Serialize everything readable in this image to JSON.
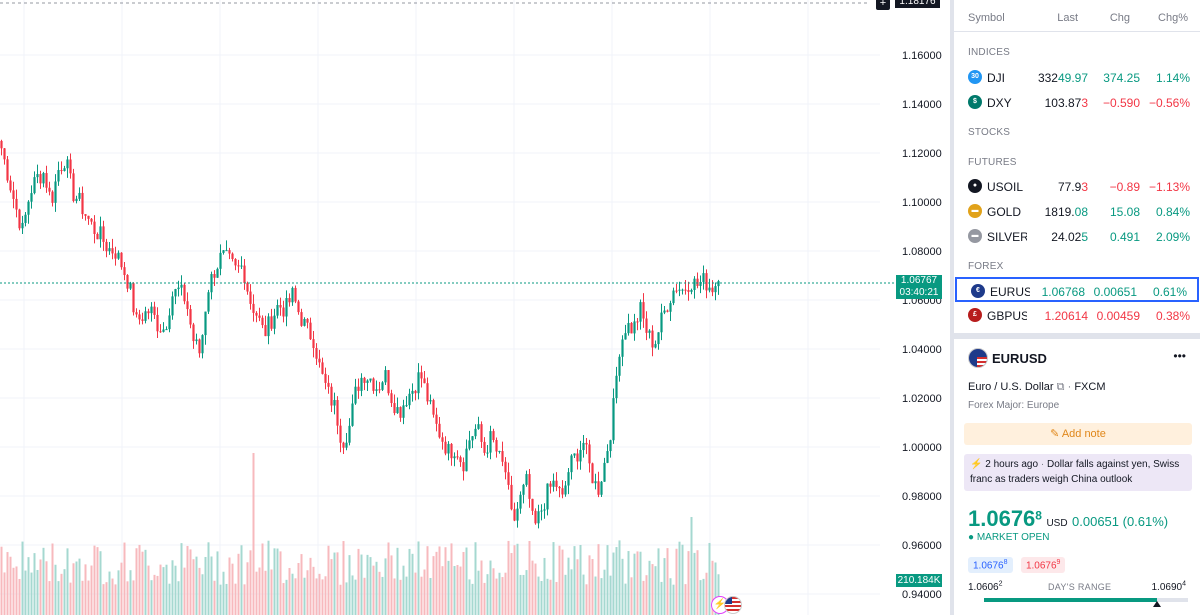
{
  "chart": {
    "current_price_top": "1.18176",
    "current_price": "1.06767",
    "countdown": "03:40:21",
    "volume": "210.184K",
    "price_axis": [
      "1.16000",
      "1.14000",
      "1.12000",
      "1.10000",
      "1.08000",
      "1.06000",
      "1.04000",
      "1.02000",
      "1.00000",
      "0.98000",
      "0.96000",
      "0.94000"
    ],
    "colors": {
      "up": "#089981",
      "down": "#f23645",
      "vol_up": "#a5d8d0",
      "vol_down": "#f7b9bd"
    },
    "close_path": [
      1.122,
      1.11,
      1.098,
      1.088,
      1.104,
      1.11,
      1.112,
      1.1,
      1.113,
      1.118,
      1.104,
      1.1,
      1.094,
      1.089,
      1.086,
      1.081,
      1.08,
      1.074,
      1.066,
      1.051,
      1.054,
      1.056,
      1.05,
      1.048,
      1.062,
      1.064,
      1.06,
      1.044,
      1.038,
      1.064,
      1.072,
      1.078,
      1.076,
      1.072,
      1.074,
      1.06,
      1.054,
      1.046,
      1.052,
      1.058,
      1.056,
      1.062,
      1.054,
      1.048,
      1.044,
      1.03,
      1.022,
      1.016,
      1.002,
      1.008,
      1.024,
      1.03,
      1.028,
      1.024,
      1.03,
      1.02,
      1.014,
      1.02,
      1.024,
      1.03,
      1.02,
      1.01,
      1.004,
      0.998,
      1.0,
      0.993,
      1.004,
      1.008,
      0.998,
      1.004,
      0.996,
      0.99,
      0.968,
      0.978,
      0.986,
      0.966,
      0.974,
      0.982,
      0.986,
      0.978,
      0.992,
      0.997,
      1.002,
      0.99,
      0.982,
      0.994,
      1.01,
      1.04,
      1.05,
      1.048,
      1.056,
      1.046,
      1.042,
      1.052,
      1.06,
      1.066,
      1.064,
      1.068,
      1.066,
      1.068,
      1.065,
      1.0677
    ]
  },
  "watchlist": {
    "headers": {
      "symbol": "Symbol",
      "last": "Last",
      "chg": "Chg",
      "chgp": "Chg%"
    },
    "sections": {
      "indices": "INDICES",
      "stocks": "STOCKS",
      "futures": "FUTURES",
      "forex": "FOREX"
    },
    "rows": [
      {
        "icon": "30",
        "color": "#2196f3",
        "symbol": "DJI",
        "last_a": "332",
        "last_b": "49.97",
        "chg": "374.25",
        "chgp": "1.14%",
        "dir": "pos"
      },
      {
        "icon": "$",
        "color": "#00796b",
        "symbol": "DXY",
        "last_a": "103.87",
        "last_b": "3",
        "chg": "−0.590",
        "chgp": "−0.56%",
        "dir": "neg"
      },
      {
        "icon": "●",
        "color": "#131722",
        "symbol": "USOIL",
        "last_a": "77.9",
        "last_b": "3",
        "chg": "−0.89",
        "chgp": "−1.13%",
        "dir": "neg"
      },
      {
        "icon": "▬",
        "color": "#e1a21a",
        "symbol": "GOLD",
        "last_a": "1819.",
        "last_b": "08",
        "chg": "15.08",
        "chgp": "0.84%",
        "dir": "pos"
      },
      {
        "icon": "▬",
        "color": "#9598a1",
        "symbol": "SILVER",
        "last_a": "24.02",
        "last_b": "5",
        "chg": "0.491",
        "chgp": "2.09%",
        "dir": "pos"
      },
      {
        "icon": "€",
        "color": "#1e3a8a",
        "symbol": "EURUSD",
        "last_a": "1.0676",
        "last_b": "8",
        "chg": "0.00651",
        "chgp": "0.61%",
        "dir": "pos"
      },
      {
        "icon": "£",
        "color": "#b71c1c",
        "symbol": "GBPUSD",
        "last_a": "1.2061",
        "last_b": "4",
        "chg": "0.00459",
        "chgp": "0.38%",
        "dir": "neg"
      }
    ]
  },
  "details": {
    "symbol": "EURUSD",
    "more": "•••",
    "name": "Euro / U.S. Dollar",
    "exchange": "FXCM",
    "category": "Forex Major: Europe",
    "add_note": "Add note",
    "news_time": "2 hours ago",
    "news_text": "Dollar falls against yen, Swiss franc as traders weigh China outlook",
    "price_main": "1.0676",
    "price_sup": "8",
    "currency": "USD",
    "change": "0.00651 (0.61%)",
    "market_status": "MARKET OPEN",
    "bid_main": "1.0676",
    "bid_sup": "8",
    "ask_main": "1.0676",
    "ask_sup": "9",
    "range_low_main": "1.0606",
    "range_low_sup": "2",
    "range_label": "DAY'S RANGE",
    "range_high_main": "1.0690",
    "range_high_sup": "4",
    "range_position": 0.85
  }
}
